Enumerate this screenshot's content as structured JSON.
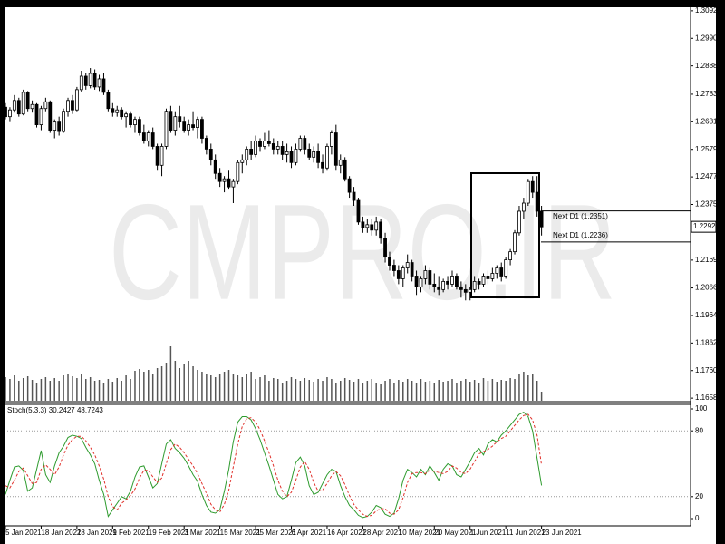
{
  "chart_data": {
    "type": "candlestick",
    "watermark": "CMPRO.IR",
    "categories": [
      "5 Jan 2021",
      null,
      null,
      null,
      null,
      null,
      null,
      null,
      "18 Jan 2021",
      null,
      null,
      null,
      null,
      null,
      null,
      null,
      "28 Jan 2021",
      null,
      null,
      null,
      null,
      null,
      null,
      null,
      "9 Feb 2021",
      null,
      null,
      null,
      null,
      null,
      null,
      null,
      "19 Feb 2021",
      null,
      null,
      null,
      null,
      null,
      null,
      null,
      "3 Mar 2021",
      null,
      null,
      null,
      null,
      null,
      null,
      null,
      "15 Mar 2021",
      null,
      null,
      null,
      null,
      null,
      null,
      null,
      "25 Mar 2021",
      null,
      null,
      null,
      null,
      null,
      null,
      null,
      "6 Apr 2021",
      null,
      null,
      null,
      null,
      null,
      null,
      null,
      "16 Apr 2021",
      null,
      null,
      null,
      null,
      null,
      null,
      null,
      "28 Apr 2021",
      null,
      null,
      null,
      null,
      null,
      null,
      null,
      "10 May 2021",
      null,
      null,
      null,
      null,
      null,
      null,
      null,
      "20 May 2021",
      null,
      null,
      null,
      null,
      null,
      null,
      null,
      "1 Jun 2021",
      null,
      null,
      null,
      null,
      null,
      null,
      null,
      "11 Jun 2021",
      null,
      null,
      null,
      null,
      null,
      null,
      null,
      "23 Jun 2021"
    ],
    "ohlc": [
      [
        1.2735,
        1.275,
        1.269,
        1.27
      ],
      [
        1.27,
        1.2735,
        1.268,
        1.2725
      ],
      [
        1.2725,
        1.278,
        1.2715,
        1.276
      ],
      [
        1.276,
        1.277,
        1.27,
        1.271
      ],
      [
        1.271,
        1.28,
        1.2705,
        1.279
      ],
      [
        1.279,
        1.2795,
        1.272,
        1.273
      ],
      [
        1.273,
        1.276,
        1.2715,
        1.2745
      ],
      [
        1.2745,
        1.275,
        1.266,
        1.267
      ],
      [
        1.267,
        1.274,
        1.265,
        1.273
      ],
      [
        1.273,
        1.277,
        1.272,
        1.2755
      ],
      [
        1.2755,
        1.276,
        1.264,
        1.265
      ],
      [
        1.265,
        1.269,
        1.262,
        1.268
      ],
      [
        1.268,
        1.27,
        1.263,
        1.2645
      ],
      [
        1.2645,
        1.273,
        1.264,
        1.272
      ],
      [
        1.272,
        1.277,
        1.27,
        1.276
      ],
      [
        1.276,
        1.278,
        1.271,
        1.2725
      ],
      [
        1.2725,
        1.281,
        1.272,
        1.28
      ],
      [
        1.28,
        1.287,
        1.279,
        1.285
      ],
      [
        1.285,
        1.286,
        1.28,
        1.2815
      ],
      [
        1.2815,
        1.288,
        1.2805,
        1.286
      ],
      [
        1.286,
        1.2875,
        1.28,
        1.281
      ],
      [
        1.281,
        1.2855,
        1.2795,
        1.284
      ],
      [
        1.284,
        1.286,
        1.278,
        1.279
      ],
      [
        1.279,
        1.28,
        1.272,
        1.273
      ],
      [
        1.273,
        1.275,
        1.27,
        1.2715
      ],
      [
        1.2715,
        1.274,
        1.27,
        1.2725
      ],
      [
        1.2725,
        1.2735,
        1.269,
        1.27
      ],
      [
        1.27,
        1.272,
        1.266,
        1.271
      ],
      [
        1.271,
        1.272,
        1.266,
        1.267
      ],
      [
        1.267,
        1.27,
        1.264,
        1.269
      ],
      [
        1.269,
        1.27,
        1.263,
        1.264
      ],
      [
        1.264,
        1.267,
        1.26,
        1.261
      ],
      [
        1.261,
        1.265,
        1.259,
        1.264
      ],
      [
        1.264,
        1.266,
        1.258,
        1.259
      ],
      [
        1.259,
        1.26,
        1.25,
        1.252
      ],
      [
        1.252,
        1.26,
        1.248,
        1.259
      ],
      [
        1.259,
        1.273,
        1.258,
        1.272
      ],
      [
        1.272,
        1.274,
        1.264,
        1.265
      ],
      [
        1.265,
        1.272,
        1.263,
        1.27
      ],
      [
        1.27,
        1.274,
        1.266,
        1.268
      ],
      [
        1.268,
        1.27,
        1.264,
        1.265
      ],
      [
        1.265,
        1.269,
        1.263,
        1.267
      ],
      [
        1.267,
        1.272,
        1.265,
        1.266
      ],
      [
        1.266,
        1.27,
        1.262,
        1.269
      ],
      [
        1.269,
        1.27,
        1.26,
        1.262
      ],
      [
        1.262,
        1.263,
        1.256,
        1.258
      ],
      [
        1.258,
        1.26,
        1.252,
        1.254
      ],
      [
        1.254,
        1.256,
        1.247,
        1.249
      ],
      [
        1.249,
        1.251,
        1.244,
        1.246
      ],
      [
        1.246,
        1.248,
        1.242,
        1.247
      ],
      [
        1.247,
        1.25,
        1.243,
        1.244
      ],
      [
        1.244,
        1.247,
        1.238,
        1.246
      ],
      [
        1.246,
        1.254,
        1.245,
        1.253
      ],
      [
        1.253,
        1.256,
        1.249,
        1.254
      ],
      [
        1.254,
        1.259,
        1.252,
        1.258
      ],
      [
        1.258,
        1.261,
        1.254,
        1.256
      ],
      [
        1.256,
        1.263,
        1.255,
        1.261
      ],
      [
        1.261,
        1.262,
        1.257,
        1.259
      ],
      [
        1.259,
        1.264,
        1.258,
        1.261
      ],
      [
        1.261,
        1.265,
        1.259,
        1.26
      ],
      [
        1.26,
        1.262,
        1.256,
        1.258
      ],
      [
        1.258,
        1.261,
        1.256,
        1.259
      ],
      [
        1.259,
        1.261,
        1.254,
        1.256
      ],
      [
        1.256,
        1.26,
        1.253,
        1.257
      ],
      [
        1.257,
        1.259,
        1.251,
        1.253
      ],
      [
        1.253,
        1.26,
        1.252,
        1.258
      ],
      [
        1.258,
        1.263,
        1.257,
        1.262
      ],
      [
        1.262,
        1.263,
        1.256,
        1.258
      ],
      [
        1.258,
        1.26,
        1.254,
        1.255
      ],
      [
        1.255,
        1.259,
        1.253,
        1.257
      ],
      [
        1.257,
        1.26,
        1.251,
        1.253
      ],
      [
        1.253,
        1.256,
        1.249,
        1.251
      ],
      [
        1.251,
        1.26,
        1.25,
        1.259
      ],
      [
        1.259,
        1.265,
        1.256,
        1.264
      ],
      [
        1.264,
        1.267,
        1.25,
        1.252
      ],
      [
        1.252,
        1.256,
        1.249,
        1.254
      ],
      [
        1.254,
        1.255,
        1.246,
        1.247
      ],
      [
        1.247,
        1.248,
        1.24,
        1.242
      ],
      [
        1.242,
        1.244,
        1.237,
        1.239
      ],
      [
        1.239,
        1.24,
        1.23,
        1.231
      ],
      [
        1.231,
        1.233,
        1.227,
        1.229
      ],
      [
        1.229,
        1.232,
        1.227,
        1.23
      ],
      [
        1.23,
        1.232,
        1.226,
        1.228
      ],
      [
        1.228,
        1.233,
        1.226,
        1.231
      ],
      [
        1.231,
        1.232,
        1.223,
        1.225
      ],
      [
        1.225,
        1.227,
        1.216,
        1.218
      ],
      [
        1.218,
        1.22,
        1.213,
        1.215
      ],
      [
        1.215,
        1.217,
        1.211,
        1.213
      ],
      [
        1.213,
        1.215,
        1.208,
        1.21
      ],
      [
        1.21,
        1.215,
        1.207,
        1.214
      ],
      [
        1.214,
        1.219,
        1.212,
        1.216
      ],
      [
        1.216,
        1.217,
        1.209,
        1.211
      ],
      [
        1.211,
        1.213,
        1.204,
        1.207
      ],
      [
        1.207,
        1.211,
        1.205,
        1.21
      ],
      [
        1.21,
        1.215,
        1.208,
        1.213
      ],
      [
        1.213,
        1.214,
        1.206,
        1.208
      ],
      [
        1.208,
        1.212,
        1.205,
        1.207
      ],
      [
        1.207,
        1.211,
        1.204,
        1.206
      ],
      [
        1.206,
        1.21,
        1.205,
        1.209
      ],
      [
        1.209,
        1.211,
        1.206,
        1.208
      ],
      [
        1.208,
        1.213,
        1.207,
        1.211
      ],
      [
        1.211,
        1.212,
        1.206,
        1.207
      ],
      [
        1.207,
        1.209,
        1.203,
        1.206
      ],
      [
        1.206,
        1.208,
        1.202,
        1.205
      ],
      [
        1.205,
        1.207,
        1.202,
        1.206
      ],
      [
        1.206,
        1.211,
        1.205,
        1.209
      ],
      [
        1.209,
        1.21,
        1.206,
        1.208
      ],
      [
        1.208,
        1.212,
        1.207,
        1.211
      ],
      [
        1.211,
        1.213,
        1.208,
        1.21
      ],
      [
        1.21,
        1.214,
        1.209,
        1.212
      ],
      [
        1.212,
        1.215,
        1.21,
        1.214
      ],
      [
        1.214,
        1.216,
        1.209,
        1.211
      ],
      [
        1.211,
        1.218,
        1.21,
        1.217
      ],
      [
        1.217,
        1.221,
        1.215,
        1.22
      ],
      [
        1.22,
        1.228,
        1.219,
        1.227
      ],
      [
        1.227,
        1.237,
        1.226,
        1.235
      ],
      [
        1.235,
        1.24,
        1.232,
        1.238
      ],
      [
        1.238,
        1.247,
        1.237,
        1.246
      ],
      [
        1.246,
        1.248,
        1.24,
        1.242
      ],
      [
        1.242,
        1.248,
        1.233,
        1.235
      ],
      [
        1.235,
        1.237,
        1.226,
        1.2292
      ]
    ],
    "volume": [
      26,
      24,
      28,
      22,
      25,
      27,
      23,
      20,
      24,
      26,
      22,
      25,
      22,
      28,
      30,
      27,
      25,
      29,
      24,
      26,
      22,
      23,
      20,
      24,
      21,
      25,
      22,
      28,
      24,
      33,
      35,
      32,
      34,
      30,
      36,
      38,
      42,
      60,
      44,
      36,
      40,
      44,
      38,
      34,
      32,
      30,
      28,
      26,
      30,
      32,
      34,
      30,
      28,
      26,
      30,
      32,
      24,
      26,
      28,
      22,
      25,
      24,
      20,
      22,
      26,
      24,
      22,
      25,
      23,
      21,
      24,
      22,
      26,
      24,
      20,
      22,
      25,
      23,
      21,
      24,
      20,
      22,
      24,
      20,
      18,
      22,
      24,
      20,
      23,
      21,
      24,
      22,
      20,
      24,
      21,
      22,
      20,
      23,
      21,
      22,
      24,
      20,
      22,
      24,
      21,
      23,
      20,
      25,
      22,
      24,
      21,
      23,
      22,
      25,
      24,
      30,
      32,
      28,
      30,
      22,
      10
    ],
    "ylim": [
      1.1645,
      1.3105
    ],
    "yticks": [
      {
        "value": 1.3092,
        "label": "1.30920"
      },
      {
        "value": 1.299,
        "label": "1.29900"
      },
      {
        "value": 1.2888,
        "label": "1.28880"
      },
      {
        "value": 1.2783,
        "label": "1.27830"
      },
      {
        "value": 1.2681,
        "label": "1.26810"
      },
      {
        "value": 1.2579,
        "label": "1.25790"
      },
      {
        "value": 1.2477,
        "label": "1.24770"
      },
      {
        "value": 1.2375,
        "label": "1.23750"
      },
      {
        "value": 1.2169,
        "label": "1.21690"
      },
      {
        "value": 1.2066,
        "label": "1.20660"
      },
      {
        "value": 1.1964,
        "label": "1.19640"
      },
      {
        "value": 1.1862,
        "label": "1.18620"
      },
      {
        "value": 1.176,
        "label": "1.17600"
      },
      {
        "value": 1.1658,
        "label": "1.16580"
      }
    ],
    "last_price": 1.22923,
    "levels": [
      {
        "label": "Next D1 (1.2351)",
        "value": 1.2351
      },
      {
        "label": "Next D1 (1.2236)",
        "value": 1.2236
      }
    ],
    "stochastic": {
      "title": "Stoch(5,3,3) 30.2427 48.7243",
      "ylim": [
        -6.6,
        103.3
      ],
      "yticks": [
        100,
        80,
        20,
        0
      ],
      "levels": [
        80,
        20
      ],
      "series": [
        {
          "color": "#2e9b2e",
          "values": [
            22,
            35,
            47,
            48,
            44,
            25,
            28,
            45,
            62,
            40,
            33,
            48,
            60,
            66,
            74,
            76,
            75,
            73,
            65,
            58,
            50,
            35,
            22,
            2,
            8,
            14,
            20,
            18,
            25,
            38,
            47,
            48,
            38,
            28,
            32,
            50,
            68,
            72,
            64,
            60,
            55,
            48,
            40,
            34,
            22,
            12,
            6,
            5,
            8,
            25,
            45,
            70,
            88,
            93,
            93,
            90,
            82,
            72,
            60,
            48,
            35,
            22,
            18,
            20,
            35,
            51,
            56,
            48,
            30,
            22,
            24,
            32,
            40,
            45,
            43,
            30,
            20,
            12,
            8,
            3,
            1,
            2,
            6,
            12,
            10,
            4,
            2,
            5,
            18,
            35,
            45,
            42,
            38,
            45,
            40,
            48,
            42,
            35,
            45,
            50,
            48,
            40,
            38,
            45,
            52,
            60,
            64,
            58,
            68,
            72,
            70,
            76,
            80,
            85,
            90,
            95,
            97,
            93,
            80,
            55,
            30.2427
          ]
        },
        {
          "color": "#e0302a",
          "values": [
            30,
            28,
            35,
            43,
            46,
            39,
            32,
            33,
            45,
            49,
            45,
            40,
            47,
            58,
            67,
            72,
            75,
            75,
            71,
            65,
            58,
            48,
            36,
            20,
            11,
            8,
            14,
            17,
            21,
            27,
            37,
            44,
            44,
            38,
            33,
            37,
            50,
            63,
            68,
            65,
            60,
            54,
            48,
            41,
            32,
            23,
            13,
            8,
            6,
            13,
            26,
            47,
            68,
            84,
            91,
            92,
            88,
            81,
            71,
            60,
            48,
            35,
            25,
            20,
            24,
            35,
            47,
            52,
            45,
            33,
            25,
            26,
            32,
            39,
            43,
            39,
            31,
            21,
            13,
            8,
            4,
            2,
            3,
            7,
            9,
            9,
            5,
            4,
            8,
            19,
            33,
            41,
            42,
            42,
            41,
            44,
            43,
            42,
            41,
            43,
            48,
            46,
            42,
            41,
            45,
            52,
            59,
            61,
            63,
            66,
            70,
            73,
            75,
            80,
            85,
            90,
            94,
            95,
            90,
            76,
            48.7243
          ]
        }
      ]
    }
  }
}
